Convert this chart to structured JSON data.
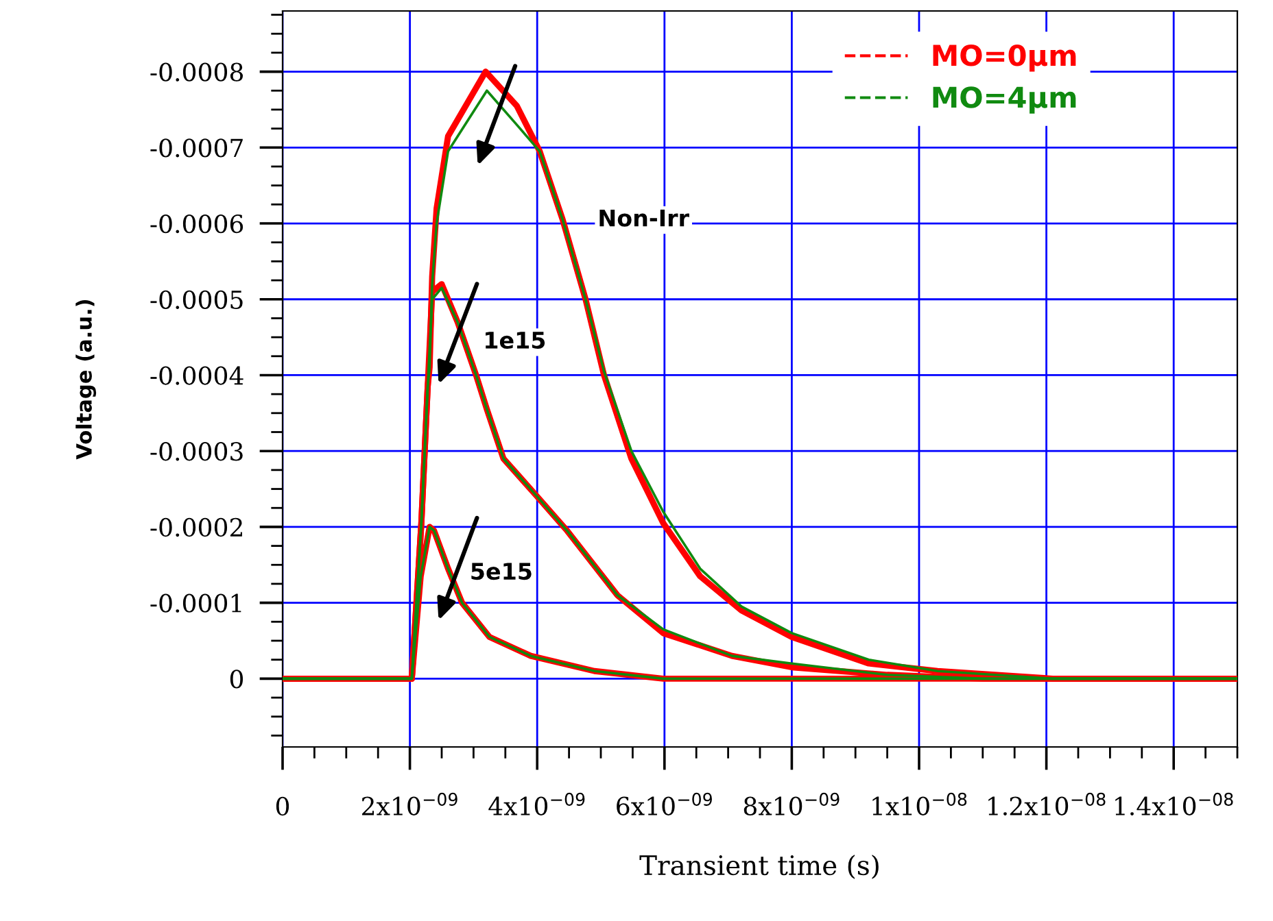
{
  "chart_data": {
    "type": "line",
    "xlabel": "Transient time (s)",
    "ylabel": "Voltage (a.u.)",
    "xlim": [
      0,
      1.5e-08
    ],
    "ylim": [
      9e-05,
      -0.00088
    ],
    "xticks": [
      0,
      {
        "value": 2e-09,
        "label": "2x10$^{−09}$"
      },
      {
        "value": 4e-09,
        "label": "4x10$^{−09}$"
      },
      {
        "value": 6e-09,
        "label": "6x10$^{−09}$"
      },
      {
        "value": 8e-09,
        "label": "8x10$^{−09}$"
      },
      {
        "value": 1e-08,
        "label": "1x10$^{−08}$"
      },
      {
        "value": 1.2e-08,
        "label": "1.2x10$^{−08}$"
      },
      {
        "value": 1.4e-08,
        "label": "1.4x10$^{−08}$"
      }
    ],
    "yticks": [
      0,
      -0.0001,
      -0.0002,
      -0.0003,
      -0.0004,
      -0.0005,
      -0.0006,
      -0.0007,
      -0.0008
    ],
    "grid": true,
    "legend": "top right",
    "line_style": "solid",
    "series": [
      {
        "name": "MO=0µm",
        "color": "#ff0000",
        "x": [
          0,
          2.03e-09,
          2.18e-09,
          2.28e-09,
          2.31e-09,
          2.35e-09,
          2.42e-09,
          2.6e-09,
          3.19e-09,
          3.68e-09,
          4.04e-09,
          4.4e-09,
          4.76e-09,
          5.05e-09,
          5.48e-09,
          5.98e-09,
          6.56e-09,
          7.21e-09,
          8e-09,
          9.21e-09,
          1.029e-08,
          1.21e-08,
          1.5e-08
        ],
        "values": [
          0,
          0,
          -0.000205,
          -0.000385,
          -0.00041,
          -0.00053,
          -0.00062,
          -0.000715,
          -0.0008,
          -0.000755,
          -0.000695,
          -0.000605,
          -0.0005,
          -0.0004,
          -0.00029,
          -0.000205,
          -0.000135,
          -9e-05,
          -5.5e-05,
          -2e-05,
          -1e-05,
          0,
          0
        ]
      },
      {
        "name": "MO=4µm",
        "color": "#108a10",
        "x": [
          0,
          2.03e-09,
          2.18e-09,
          2.28e-09,
          2.31e-09,
          2.35e-09,
          2.42e-09,
          2.6e-09,
          3.21e-09,
          3.68e-09,
          4.04e-09,
          4.4e-09,
          4.76e-09,
          5.05e-09,
          5.48e-09,
          5.98e-09,
          6.56e-09,
          7.21e-09,
          8e-09,
          9.21e-09,
          1.029e-08,
          1.21e-08,
          1.5e-08
        ],
        "values": [
          0,
          0,
          -0.000205,
          -0.000385,
          -0.00041,
          -0.00052,
          -0.0006,
          -0.000695,
          -0.000775,
          -0.00073,
          -0.000695,
          -0.000605,
          -0.0005,
          -0.000405,
          -0.0003,
          -0.00022,
          -0.000145,
          -9.5e-05,
          -6e-05,
          -2.5e-05,
          -1e-05,
          0,
          0
        ]
      },
      {
        "color": "#ff0000",
        "x": [
          0,
          2.03e-09,
          2.18e-09,
          2.28e-09,
          2.35e-09,
          2.5e-09,
          2.75e-09,
          3.04e-09,
          3.21e-09,
          3.47e-09,
          4e-09,
          4.47e-09,
          5.26e-09,
          5.98e-09,
          7.06e-09,
          8e-09,
          9.5e-09,
          1.1e-08,
          1.5e-08
        ],
        "values": [
          0,
          0,
          -0.000205,
          -0.000385,
          -0.00051,
          -0.00052,
          -0.00047,
          -0.0004,
          -0.000355,
          -0.00029,
          -0.00024,
          -0.000195,
          -0.00011,
          -6e-05,
          -3e-05,
          -1.5e-05,
          -5e-06,
          0,
          0
        ]
      },
      {
        "color": "#108a10",
        "x": [
          0,
          2.03e-09,
          2.18e-09,
          2.28e-09,
          2.35e-09,
          2.5e-09,
          2.75e-09,
          3.04e-09,
          3.21e-09,
          3.47e-09,
          4e-09,
          4.47e-09,
          5.26e-09,
          5.98e-09,
          7.06e-09,
          8e-09,
          9.5e-09,
          1.1e-08,
          1.5e-08
        ],
        "values": [
          0,
          0,
          -0.000205,
          -0.000385,
          -0.0005,
          -0.000515,
          -0.00047,
          -0.0004,
          -0.000355,
          -0.00029,
          -0.00024,
          -0.000195,
          -0.00011,
          -6.5e-05,
          -3e-05,
          -2e-05,
          -5e-06,
          0,
          0
        ]
      },
      {
        "color": "#ff0000",
        "x": [
          0,
          2.03e-09,
          2.17e-09,
          2.31e-09,
          2.38e-09,
          2.6e-09,
          2.82e-09,
          3.25e-09,
          3.9e-09,
          4.9e-09,
          5.98e-09,
          7.5e-09,
          1.5e-08
        ],
        "values": [
          0,
          0,
          -0.000135,
          -0.0002,
          -0.000195,
          -0.000145,
          -0.0001,
          -5.5e-05,
          -3e-05,
          -1e-05,
          0,
          0,
          0
        ]
      },
      {
        "color": "#108a10",
        "x": [
          0,
          2.03e-09,
          2.17e-09,
          2.31e-09,
          2.38e-09,
          2.6e-09,
          2.82e-09,
          3.25e-09,
          3.9e-09,
          4.9e-09,
          5.98e-09,
          7.5e-09,
          1.5e-08
        ],
        "values": [
          0,
          0,
          -0.000135,
          -0.0002,
          -0.000195,
          -0.000145,
          -0.0001,
          -5.5e-05,
          -3e-05,
          -1e-05,
          0,
          0,
          0
        ]
      }
    ],
    "annotations": [
      "Non-Irr",
      "1e15",
      "5e15"
    ]
  }
}
